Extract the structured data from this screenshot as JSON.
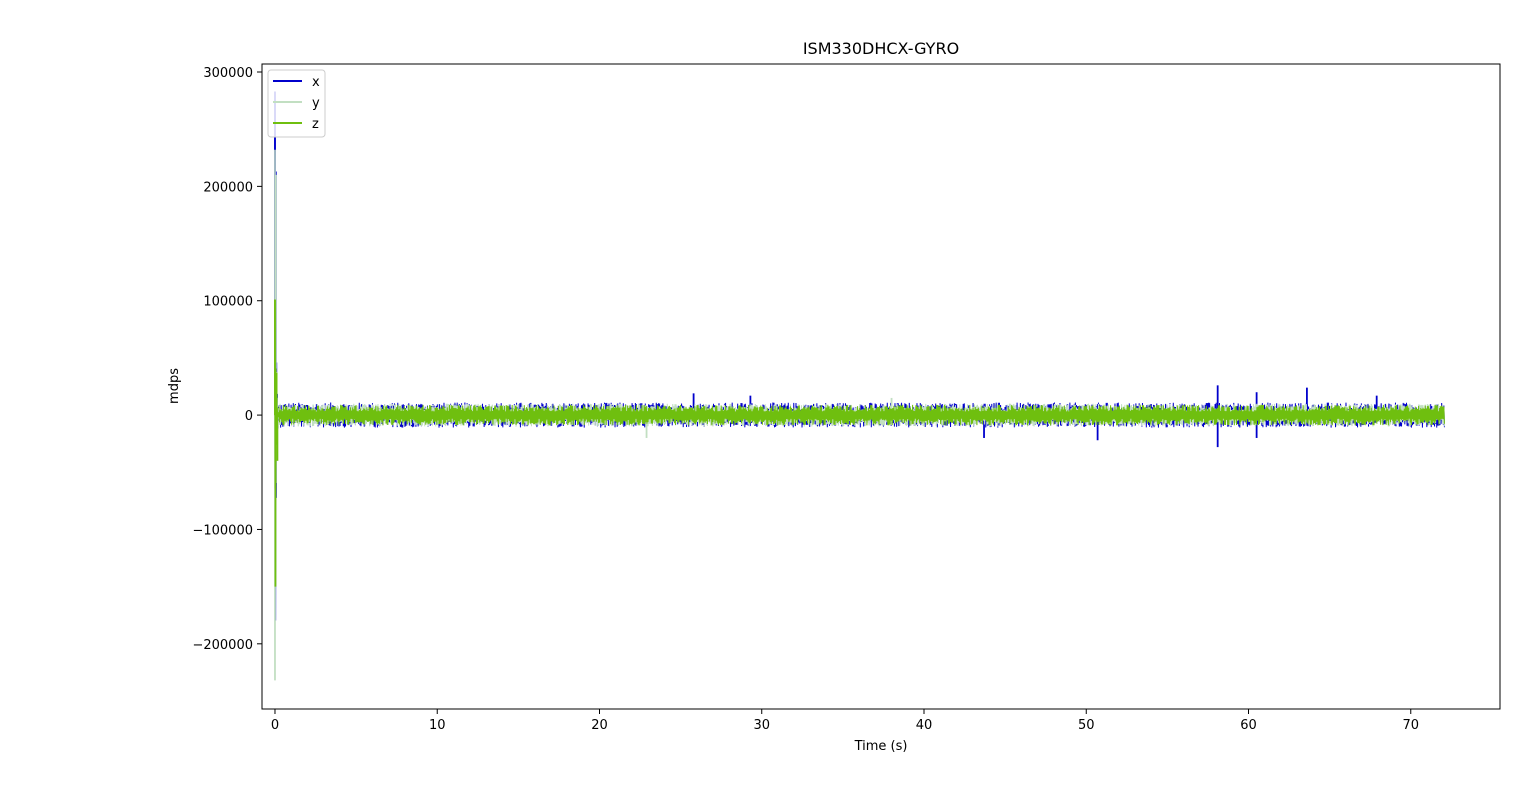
{
  "chart_data": {
    "type": "line",
    "title": "ISM330DHCX-GYRO",
    "xlabel": "Time (s)",
    "ylabel": "mdps",
    "xlim": [
      -0.8,
      75.5
    ],
    "ylim": [
      -257000,
      307000
    ],
    "x_ticks": [
      0,
      10,
      20,
      30,
      40,
      50,
      60,
      70
    ],
    "y_ticks": [
      -200000,
      -100000,
      0,
      100000,
      200000,
      300000
    ],
    "y_tick_labels": [
      "−200000",
      "−100000",
      "0",
      "100000",
      "200000",
      "300000"
    ],
    "grid": false,
    "legend_position": "upper-left",
    "duration_s": 72.1,
    "series": [
      {
        "name": "x",
        "color": "#0000cc",
        "noise_amplitude": 11000,
        "spikes": [
          {
            "x": 0.0,
            "y": 283000
          },
          {
            "x": 0.05,
            "y": 213000
          },
          {
            "x": 25.8,
            "y": 19000
          },
          {
            "x": 29.3,
            "y": 17000
          },
          {
            "x": 43.7,
            "y": -20000
          },
          {
            "x": 50.7,
            "y": -22000
          },
          {
            "x": 58.1,
            "y": 26000
          },
          {
            "x": 58.1,
            "y": -28000
          },
          {
            "x": 60.5,
            "y": 20000
          },
          {
            "x": 60.5,
            "y": -20000
          },
          {
            "x": 63.6,
            "y": 24000
          },
          {
            "x": 67.9,
            "y": 17000
          }
        ]
      },
      {
        "name": "y",
        "color": "#c2dfc2",
        "noise_amplitude": 10000,
        "spikes": [
          {
            "x": 0.0,
            "y": -232000
          },
          {
            "x": 0.05,
            "y": 210000
          },
          {
            "x": 22.9,
            "y": -20000
          },
          {
            "x": 38.0,
            "y": 15000
          }
        ]
      },
      {
        "name": "z",
        "color": "#6fbf0f",
        "noise_amplitude": 9000,
        "spikes": [
          {
            "x": 0.0,
            "y": 101000
          },
          {
            "x": 0.03,
            "y": -150000
          },
          {
            "x": 0.1,
            "y": 37000
          },
          {
            "x": 0.15,
            "y": -40000
          }
        ]
      }
    ]
  }
}
